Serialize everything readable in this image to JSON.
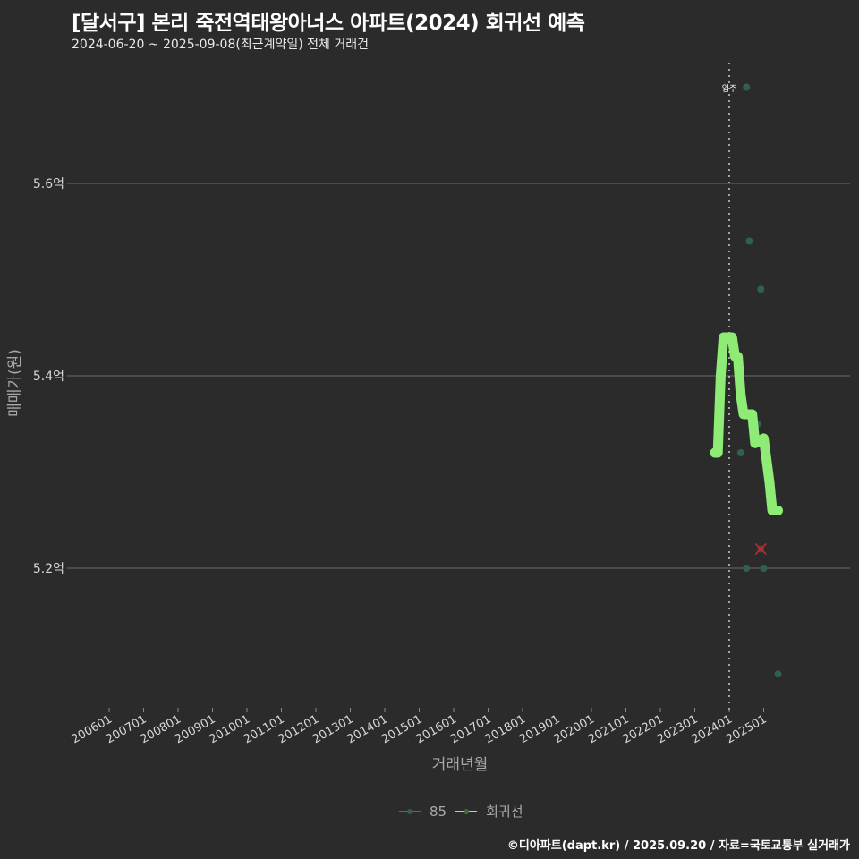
{
  "header": {
    "title": "[달서구] 본리 죽전역태왕아너스 아파트(2024) 회귀선 예측",
    "subtitle": "2024-06-20 ~ 2025-09-08(최근계약일) 전체 거래건"
  },
  "caption": "©디아파트(dapt.kr) / 2025.09.20 / 자료=국토교통부 실거래가",
  "legend": {
    "items": [
      {
        "label": "85",
        "color": "#2a7f7a"
      },
      {
        "label": "회귀선",
        "color": "#90ee78"
      }
    ]
  },
  "colors": {
    "background": "#2b2b2b",
    "grid": "#6a6a6a",
    "points": "#2f5f55",
    "regression": "#8eec76",
    "marker_x": "#c0282a",
    "vline": "#cccccc"
  },
  "chart_data": {
    "type": "scatter",
    "title": "[달서구] 본리 죽전역태왕아너스 아파트(2024) 회귀선 예측",
    "subtitle": "2024-06-20 ~ 2025-09-08(최근계약일) 전체 거래건",
    "xlabel": "거래년월",
    "ylabel": "매매가(원)",
    "x_ticks": [
      "200601",
      "200701",
      "200801",
      "200901",
      "201001",
      "201101",
      "201201",
      "201301",
      "201401",
      "201501",
      "201601",
      "201701",
      "201801",
      "201901",
      "202001",
      "202101",
      "202201",
      "202301",
      "202401",
      "202501"
    ],
    "y_ticks": [
      "5.2억",
      "5.4억",
      "5.6억"
    ],
    "y_tick_values": [
      5.2,
      5.4,
      5.6
    ],
    "ylim": [
      5.06,
      5.73
    ],
    "grid": "horizontal",
    "legend_position": "bottom",
    "vline": {
      "x": "202401",
      "label": "입주"
    },
    "series": [
      {
        "name": "85",
        "type": "scatter",
        "points": [
          {
            "x": "2024-07",
            "y": 5.7
          },
          {
            "x": "2024-08",
            "y": 5.54
          },
          {
            "x": "2024-12",
            "y": 5.49
          },
          {
            "x": "2024-05",
            "y": 5.32
          },
          {
            "x": "2024-11",
            "y": 5.35
          },
          {
            "x": "2024-07",
            "y": 5.2
          },
          {
            "x": "2025-01",
            "y": 5.2
          },
          {
            "x": "2025-06",
            "y": 5.09
          }
        ]
      },
      {
        "name": "회귀선",
        "type": "line",
        "points": [
          {
            "x": "2023-08",
            "y": 5.32
          },
          {
            "x": "2023-09",
            "y": 5.32
          },
          {
            "x": "2023-10",
            "y": 5.4
          },
          {
            "x": "2023-11",
            "y": 5.44
          },
          {
            "x": "2024-01",
            "y": 5.44
          },
          {
            "x": "2024-02",
            "y": 5.44
          },
          {
            "x": "2024-03",
            "y": 5.42
          },
          {
            "x": "2024-04",
            "y": 5.42
          },
          {
            "x": "2024-05",
            "y": 5.38
          },
          {
            "x": "2024-06",
            "y": 5.36
          },
          {
            "x": "2024-09",
            "y": 5.36
          },
          {
            "x": "2024-10",
            "y": 5.33
          },
          {
            "x": "2025-01",
            "y": 5.335
          },
          {
            "x": "2025-03",
            "y": 5.29
          },
          {
            "x": "2025-04",
            "y": 5.26
          },
          {
            "x": "2025-06",
            "y": 5.26
          }
        ]
      }
    ],
    "annotations": [
      {
        "type": "x-marker",
        "x": "2024-12",
        "y": 5.22,
        "color": "#c0282a",
        "meaning": "predicted"
      },
      {
        "type": "text",
        "x": "202401",
        "y": 5.7,
        "text": "입주"
      }
    ]
  },
  "axes": {
    "xlabel": "거래년월",
    "ylabel": "매매가(원)",
    "vline_label": "입주"
  }
}
